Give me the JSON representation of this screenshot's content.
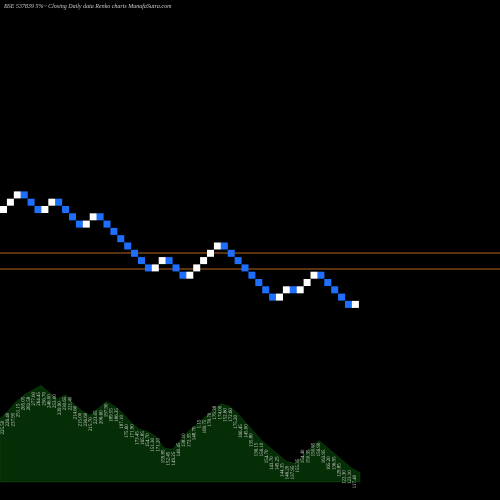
{
  "chart_data": {
    "type": "renko",
    "title": "BSE 537839 5%~  Closing Daily data  Renko  charts MunafaSutra.com",
    "colors": {
      "background": "#000000",
      "up_brick": "#ffffff",
      "down_brick": "#1f6fff",
      "reference_line": "#b4641e",
      "volume_area": "#062e06"
    },
    "reference_lines": [
      249,
      236
    ],
    "y_scale": {
      "brick_size": 9.5,
      "start_price": 268
    },
    "bricks": [
      {
        "dir": "up"
      },
      {
        "dir": "up"
      },
      {
        "dir": "up"
      },
      {
        "dir": "down"
      },
      {
        "dir": "down"
      },
      {
        "dir": "down"
      },
      {
        "dir": "up"
      },
      {
        "dir": "up"
      },
      {
        "dir": "down"
      },
      {
        "dir": "down"
      },
      {
        "dir": "down"
      },
      {
        "dir": "down"
      },
      {
        "dir": "up"
      },
      {
        "dir": "up"
      },
      {
        "dir": "down"
      },
      {
        "dir": "down"
      },
      {
        "dir": "down"
      },
      {
        "dir": "down"
      },
      {
        "dir": "down"
      },
      {
        "dir": "down"
      },
      {
        "dir": "down"
      },
      {
        "dir": "down"
      },
      {
        "dir": "up"
      },
      {
        "dir": "up"
      },
      {
        "dir": "down"
      },
      {
        "dir": "down"
      },
      {
        "dir": "down"
      },
      {
        "dir": "up"
      },
      {
        "dir": "up"
      },
      {
        "dir": "up"
      },
      {
        "dir": "up"
      },
      {
        "dir": "up"
      },
      {
        "dir": "down"
      },
      {
        "dir": "down"
      },
      {
        "dir": "down"
      },
      {
        "dir": "down"
      },
      {
        "dir": "down"
      },
      {
        "dir": "down"
      },
      {
        "dir": "down"
      },
      {
        "dir": "down"
      },
      {
        "dir": "up"
      },
      {
        "dir": "up"
      },
      {
        "dir": "down"
      },
      {
        "dir": "up"
      },
      {
        "dir": "up"
      },
      {
        "dir": "up"
      },
      {
        "dir": "down"
      },
      {
        "dir": "down"
      },
      {
        "dir": "down"
      },
      {
        "dir": "down"
      },
      {
        "dir": "down"
      },
      {
        "dir": "up"
      }
    ],
    "volume_profile": [
      55,
      62,
      70,
      76,
      80,
      84,
      78,
      72,
      76,
      68,
      62,
      58,
      64,
      70,
      66,
      60,
      52,
      46,
      44,
      40,
      30,
      28,
      36,
      44,
      50,
      56,
      62,
      68,
      66,
      60,
      52,
      44,
      36,
      30,
      24,
      18,
      16,
      22,
      30,
      36,
      30,
      24,
      18,
      12,
      8
    ],
    "volume_labels": [
      "225.50",
      "226.40",
      "237.95",
      "251.15",
      "265.05",
      "282.58",
      "277.00",
      "264.45",
      "256.70",
      "246.00",
      "253.00",
      "239.90",
      "230.65",
      "221.40",
      "214.60",
      "215.00",
      "236.60",
      "215.70",
      "223.05",
      "206.60",
      "197.90",
      "189.55",
      "186.35",
      "187.10",
      "175.60",
      "171.90",
      "173.45",
      "165.85",
      "154.70",
      "151.30",
      "171.20",
      "159.85",
      "152.45",
      "149.25",
      "140.45",
      "138.10",
      "172.35",
      "148.70",
      "1.15",
      "169.75",
      "178.70",
      "179.38",
      "174.00",
      "152.60",
      "172.60",
      "175.20",
      "166.45",
      "145.00",
      "135.80",
      "136.15",
      "156.10",
      "154.70",
      "143.70",
      "145.25",
      "144.35",
      "146.20",
      "137.95",
      "155.35",
      "154.40",
      "150.35",
      "150.65",
      "156.90",
      "163.95",
      "165.20",
      "136.95",
      "129.85",
      "122.30",
      "123.10",
      "117.40"
    ]
  }
}
